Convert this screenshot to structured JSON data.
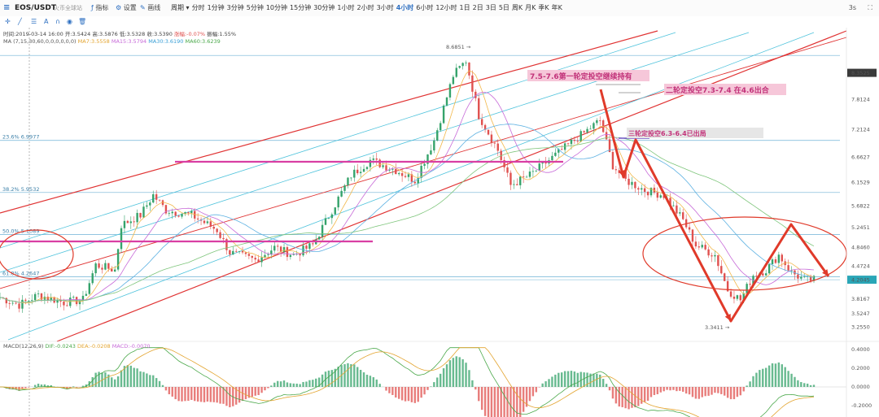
{
  "toolbar": {
    "symbol": "EOS/USDT",
    "site": "火币全球站",
    "indicator_label": "指标",
    "settings_label": "设置",
    "drawing_label": "画线",
    "period_label": "周期",
    "intervals": [
      "分时",
      "1分钟",
      "3分钟",
      "5分钟",
      "10分钟",
      "15分钟",
      "30分钟",
      "1小时",
      "2小时",
      "3小时",
      "4小时",
      "6小时",
      "12小时",
      "1日",
      "2日",
      "3日",
      "5日",
      "周K",
      "月K",
      "季K",
      "年K"
    ],
    "active_interval": "4小时",
    "timezone": "3s"
  },
  "info": {
    "time": "时间:2019-03-14 16:00",
    "open": "开:3.5424",
    "high": "高:3.5876",
    "low": "低:3.5328",
    "close": "收:3.5390",
    "change": "涨幅:-0.07%",
    "amplitude": "振幅:1.55%"
  },
  "ma": {
    "label": "MA (7,15,30,60,0,0,0,0,0,0)",
    "ma7": "MA7:3.5558",
    "ma15": "MA15:3.5794",
    "ma30": "MA30:3.6190",
    "ma60": "MA60:3.6239"
  },
  "macd": {
    "label": "MACD(12,26,9)",
    "dif": "DIF:-0.0243",
    "dea": "DEA:-0.0208",
    "macd": "MACD:-0.0070"
  },
  "fib_levels": [
    {
      "label": "23.6% 6.9977",
      "price": 6.9977
    },
    {
      "label": "38.2% 5.9532",
      "price": 5.9532
    },
    {
      "label": "50.0% 5.1089",
      "price": 5.1089
    },
    {
      "label": "61.8% 4.2647",
      "price": 4.2647
    }
  ],
  "price_axis": {
    "ticks": [
      "7.8124",
      "7.2124",
      "6.6627",
      "6.1529",
      "5.6822",
      "5.2451",
      "4.8460",
      "4.4724",
      "3.8167",
      "3.5247",
      "3.2550"
    ],
    "top_level": "8.6851",
    "current_badge": "8.3525",
    "last_badge": "4.2045"
  },
  "macd_axis": {
    "ticks": [
      "0.4000",
      "0.2000",
      "0.0000",
      "-0.2000",
      "-0.4000"
    ]
  },
  "annotations": {
    "high_label": "8.6851 →",
    "low_label": "3.3411 →",
    "note1": "7.5-7.6第一轮定投空继续持有",
    "note2": "二轮定投空7.3-7.4  在4.6出合",
    "note3": "三轮定投空6.3-6.4已出局"
  },
  "colors": {
    "up": "#35a36b",
    "down": "#e0514f",
    "ma7": "#f2b84b",
    "ma15": "#c76ad8",
    "ma30": "#5db1e2",
    "ma60": "#7ec57b",
    "channel_red": "#e03333",
    "channel_blue": "#4fc3dc",
    "pink_line": "#d93fa3",
    "arrow": "#e03a2a",
    "fib": "#6fb2d6"
  },
  "chart_data": {
    "type": "candlestick",
    "pair": "EOS/USDT",
    "interval": "4小时",
    "high_price": 8.6851,
    "low_price": 3.3411,
    "close_price_points": [
      {
        "i": 0,
        "close": 3.85
      },
      {
        "i": 6,
        "close": 3.7
      },
      {
        "i": 12,
        "close": 3.9
      },
      {
        "i": 20,
        "close": 3.75
      },
      {
        "i": 26,
        "close": 3.8
      },
      {
        "i": 30,
        "close": 4.5
      },
      {
        "i": 36,
        "close": 4.4
      },
      {
        "i": 38,
        "close": 5.3
      },
      {
        "i": 44,
        "close": 5.5
      },
      {
        "i": 48,
        "close": 5.9
      },
      {
        "i": 52,
        "close": 5.6
      },
      {
        "i": 60,
        "close": 5.5
      },
      {
        "i": 68,
        "close": 5.2
      },
      {
        "i": 72,
        "close": 4.75
      },
      {
        "i": 80,
        "close": 4.6
      },
      {
        "i": 86,
        "close": 4.85
      },
      {
        "i": 92,
        "close": 4.7
      },
      {
        "i": 98,
        "close": 4.9
      },
      {
        "i": 104,
        "close": 5.6
      },
      {
        "i": 110,
        "close": 6.3
      },
      {
        "i": 116,
        "close": 6.6
      },
      {
        "i": 124,
        "close": 6.4
      },
      {
        "i": 130,
        "close": 6.2
      },
      {
        "i": 136,
        "close": 7.0
      },
      {
        "i": 142,
        "close": 8.3
      },
      {
        "i": 146,
        "close": 8.6
      },
      {
        "i": 150,
        "close": 7.5
      },
      {
        "i": 156,
        "close": 6.8
      },
      {
        "i": 160,
        "close": 6.1
      },
      {
        "i": 166,
        "close": 6.3
      },
      {
        "i": 172,
        "close": 6.6
      },
      {
        "i": 178,
        "close": 6.9
      },
      {
        "i": 184,
        "close": 7.2
      },
      {
        "i": 188,
        "close": 7.4
      },
      {
        "i": 192,
        "close": 6.5
      },
      {
        "i": 196,
        "close": 6.2
      },
      {
        "i": 202,
        "close": 6.0
      },
      {
        "i": 208,
        "close": 5.9
      },
      {
        "i": 214,
        "close": 5.4
      },
      {
        "i": 218,
        "close": 4.9
      },
      {
        "i": 224,
        "close": 4.7
      },
      {
        "i": 228,
        "close": 4.0
      },
      {
        "i": 232,
        "close": 3.8
      },
      {
        "i": 236,
        "close": 4.3
      },
      {
        "i": 240,
        "close": 4.4
      },
      {
        "i": 244,
        "close": 4.7
      },
      {
        "i": 248,
        "close": 4.35
      },
      {
        "i": 252,
        "close": 4.2
      }
    ],
    "ylim": [
      3.0,
      8.9
    ],
    "fibonacci": [
      0.236,
      0.382,
      0.5,
      0.618
    ],
    "macd_ylim": [
      -0.45,
      0.45
    ]
  }
}
